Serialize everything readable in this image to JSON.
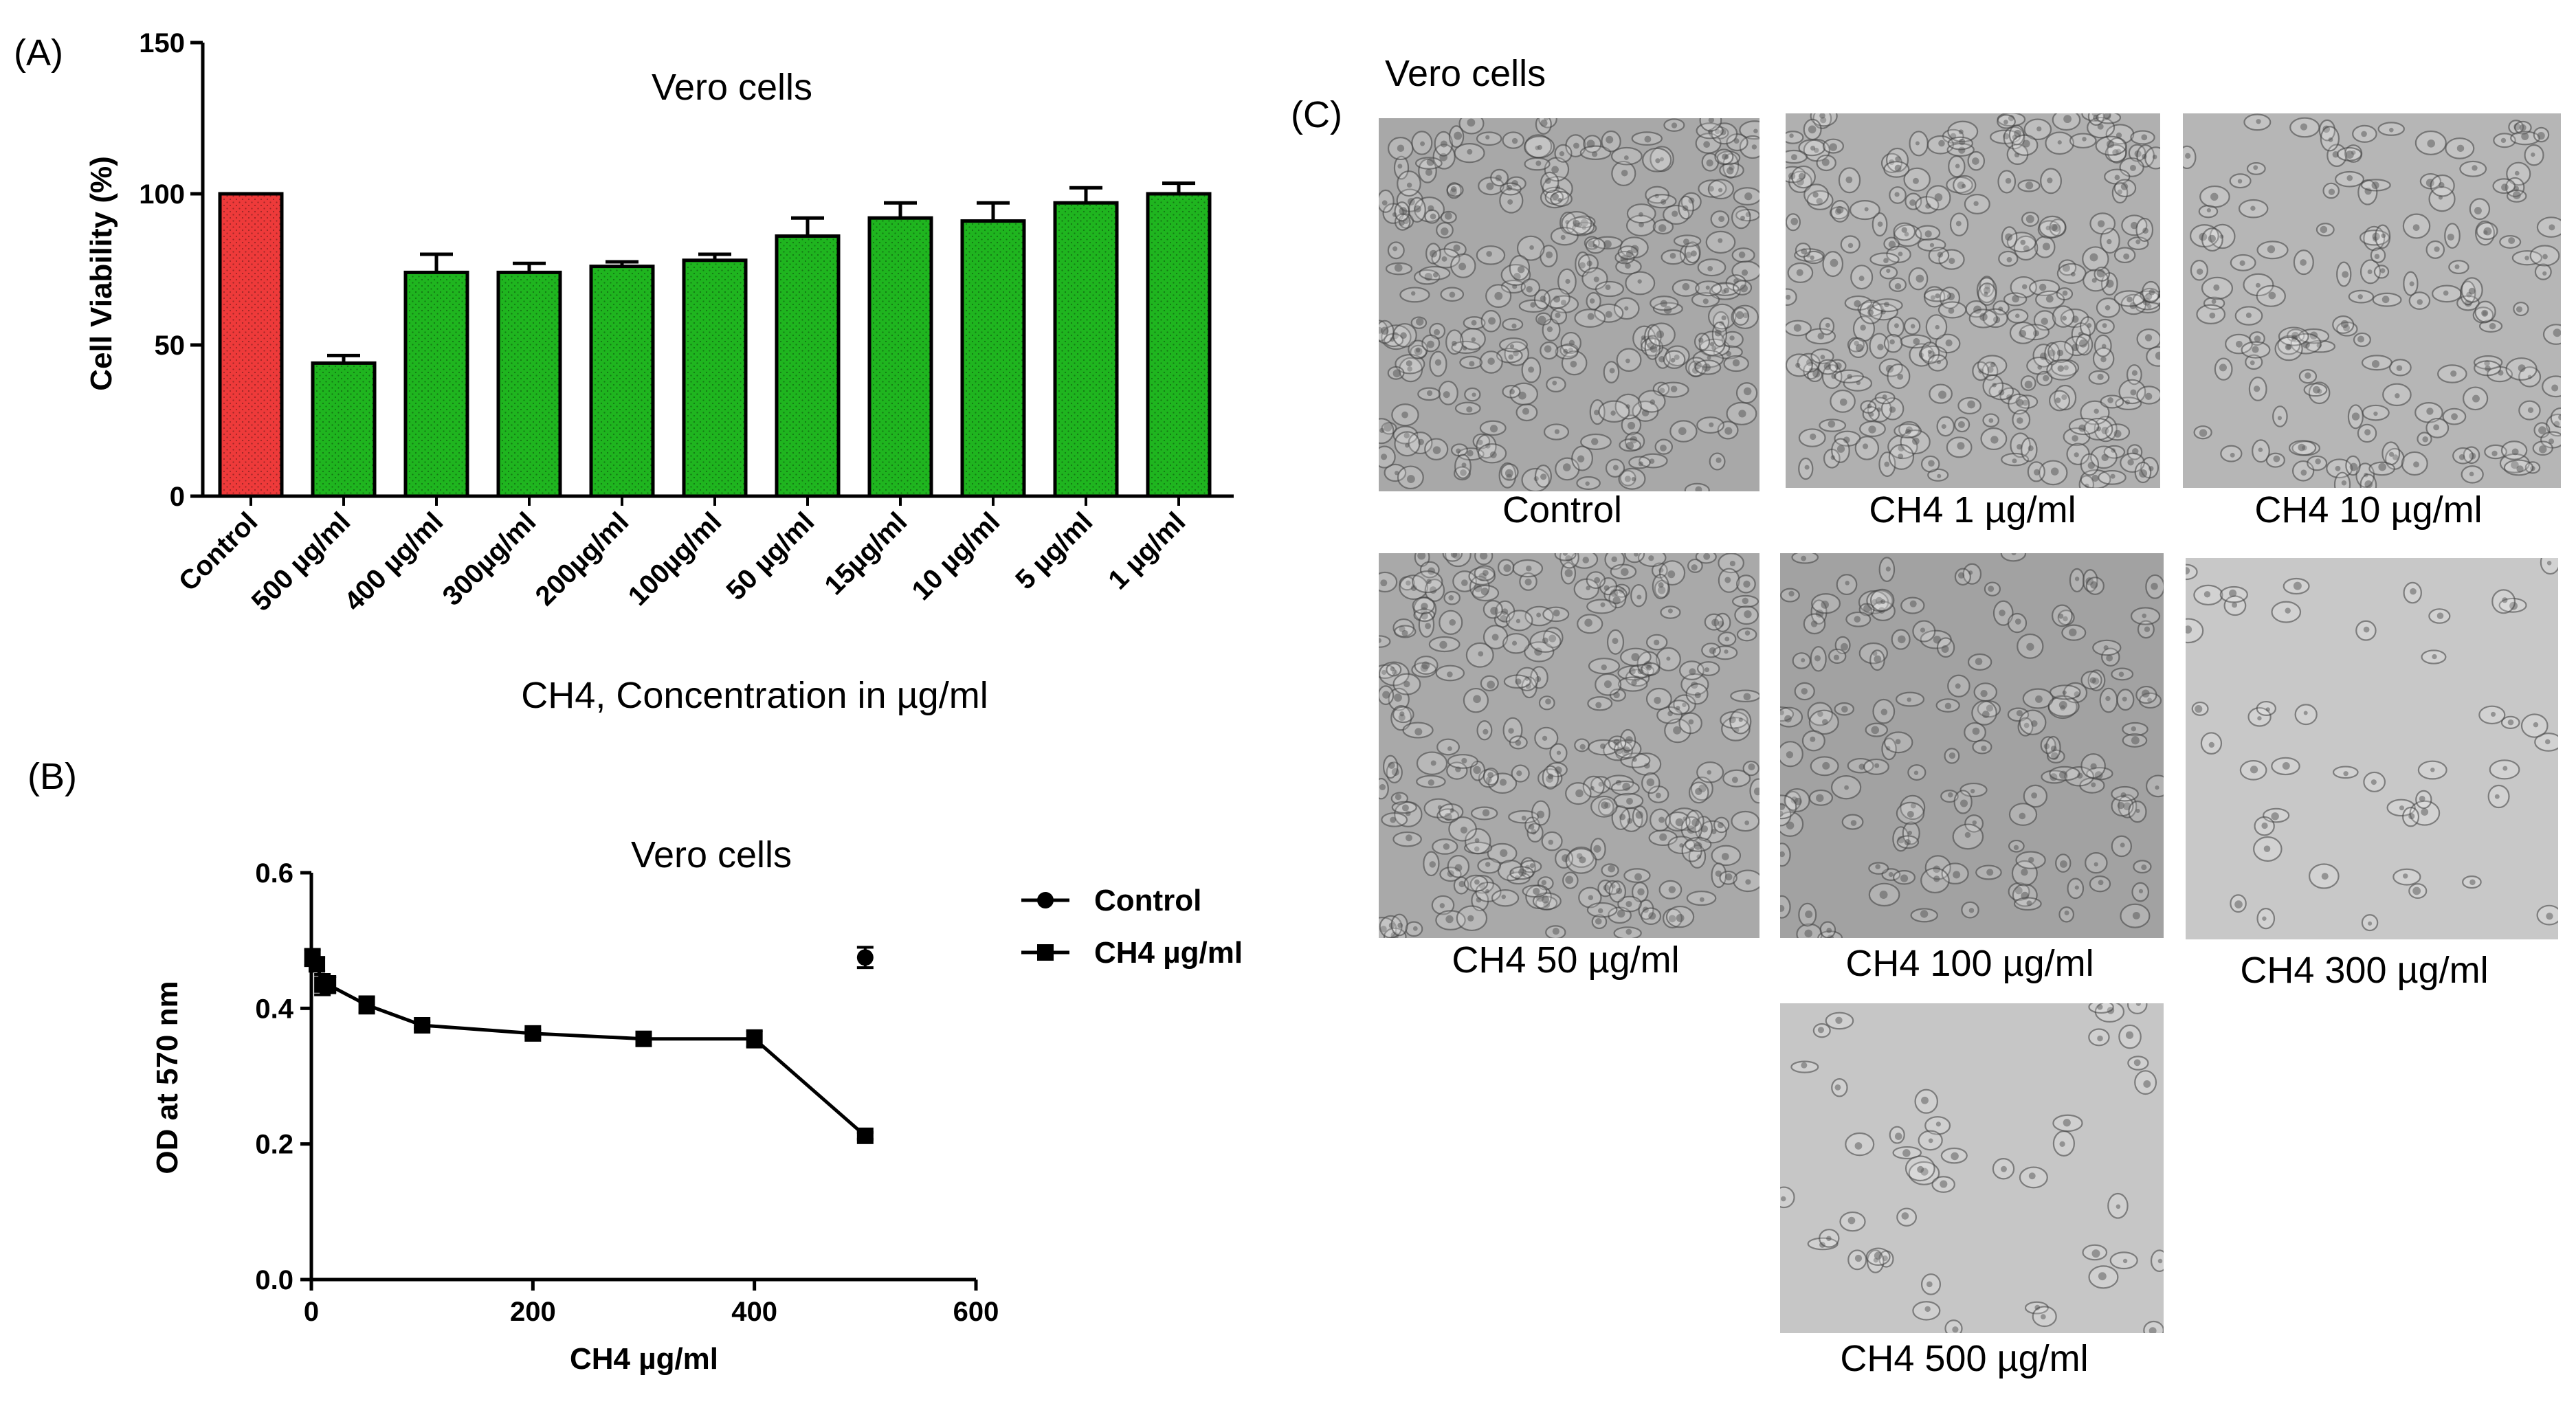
{
  "panel_labels": {
    "a": "(A)",
    "b": "(B)",
    "c": "(C)"
  },
  "colors": {
    "control_bar": "#ee3a3a",
    "treated_bar": "#1fb51f",
    "axis": "#000000"
  },
  "chart_data": [
    {
      "type": "bar",
      "panel": "A",
      "title": "Vero cells",
      "xlabel": "CH4, Concentration in µg/ml",
      "ylabel": "Cell Viability (%)",
      "ylim": [
        0,
        150
      ],
      "yticks": [
        0,
        50,
        100,
        150
      ],
      "categories": [
        "Control",
        "500 µg/ml",
        "400 µg/ml",
        "300µg/ml",
        "200µg/ml",
        "100µg/ml",
        "50 µg/ml",
        "15µg/ml",
        "10 µg/ml",
        "5 µg/ml",
        "1 µg/ml"
      ],
      "values": [
        100,
        44,
        74,
        74,
        76,
        78,
        86,
        92,
        91,
        97,
        100
      ],
      "errors": [
        0,
        2.5,
        6,
        3,
        1.5,
        2,
        6,
        5,
        6,
        5,
        3.5
      ],
      "bar_colors": [
        "#ee3a3a",
        "#1fb51f",
        "#1fb51f",
        "#1fb51f",
        "#1fb51f",
        "#1fb51f",
        "#1fb51f",
        "#1fb51f",
        "#1fb51f",
        "#1fb51f",
        "#1fb51f"
      ]
    },
    {
      "type": "line",
      "panel": "B",
      "title": "Vero cells",
      "xlabel": "CH4 µg/ml",
      "ylabel": "OD at 570 nm",
      "xlim": [
        0,
        600
      ],
      "ylim": [
        0,
        0.6
      ],
      "xticks": [
        0,
        200,
        400,
        600
      ],
      "yticks": [
        "0.0",
        "0.2",
        "0.4",
        "0.6"
      ],
      "legend_position": "right",
      "series": [
        {
          "name": "Control",
          "marker": "circle",
          "x": [
            500
          ],
          "y": [
            0.475
          ],
          "err": [
            0.015
          ]
        },
        {
          "name": "CH4 µg/ml",
          "marker": "square",
          "x": [
            1,
            5,
            10,
            15,
            50,
            100,
            200,
            300,
            400,
            500
          ],
          "y": [
            0.475,
            0.465,
            0.435,
            0.435,
            0.405,
            0.375,
            0.363,
            0.355,
            0.355,
            0.212
          ],
          "err": [
            0.012,
            0.01,
            0.015,
            0.012,
            0.012,
            0.005,
            0.005,
            0.005,
            0.012,
            0.005
          ]
        }
      ]
    }
  ],
  "micrographs": {
    "title": "Vero cells",
    "images": [
      {
        "caption": "Control",
        "tone": "#a8a8a8",
        "density": "high"
      },
      {
        "caption": "CH4 1 µg/ml",
        "tone": "#b0b0b0",
        "density": "high"
      },
      {
        "caption": "CH4 10 µg/ml",
        "tone": "#b6b6b6",
        "density": "medium"
      },
      {
        "caption": "CH4 50 µg/ml",
        "tone": "#a9a9a9",
        "density": "high"
      },
      {
        "caption": "CH4 100 µg/ml",
        "tone": "#a2a2a2",
        "density": "medium"
      },
      {
        "caption": "CH4 300 µg/ml",
        "tone": "#c8c8c8",
        "density": "low"
      },
      {
        "caption": "CH4 500 µg/ml",
        "tone": "#c6c6c6",
        "density": "low"
      }
    ]
  }
}
